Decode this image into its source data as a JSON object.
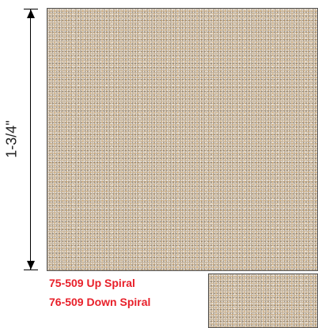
{
  "dimension": {
    "label": "1-3/4\""
  },
  "products": [
    {
      "label": "75-509 Up Spiral"
    },
    {
      "label": "76-509 Down Spiral"
    }
  ],
  "colors": {
    "caption": "#e8202a",
    "granite_base": "#c9b9a2"
  }
}
